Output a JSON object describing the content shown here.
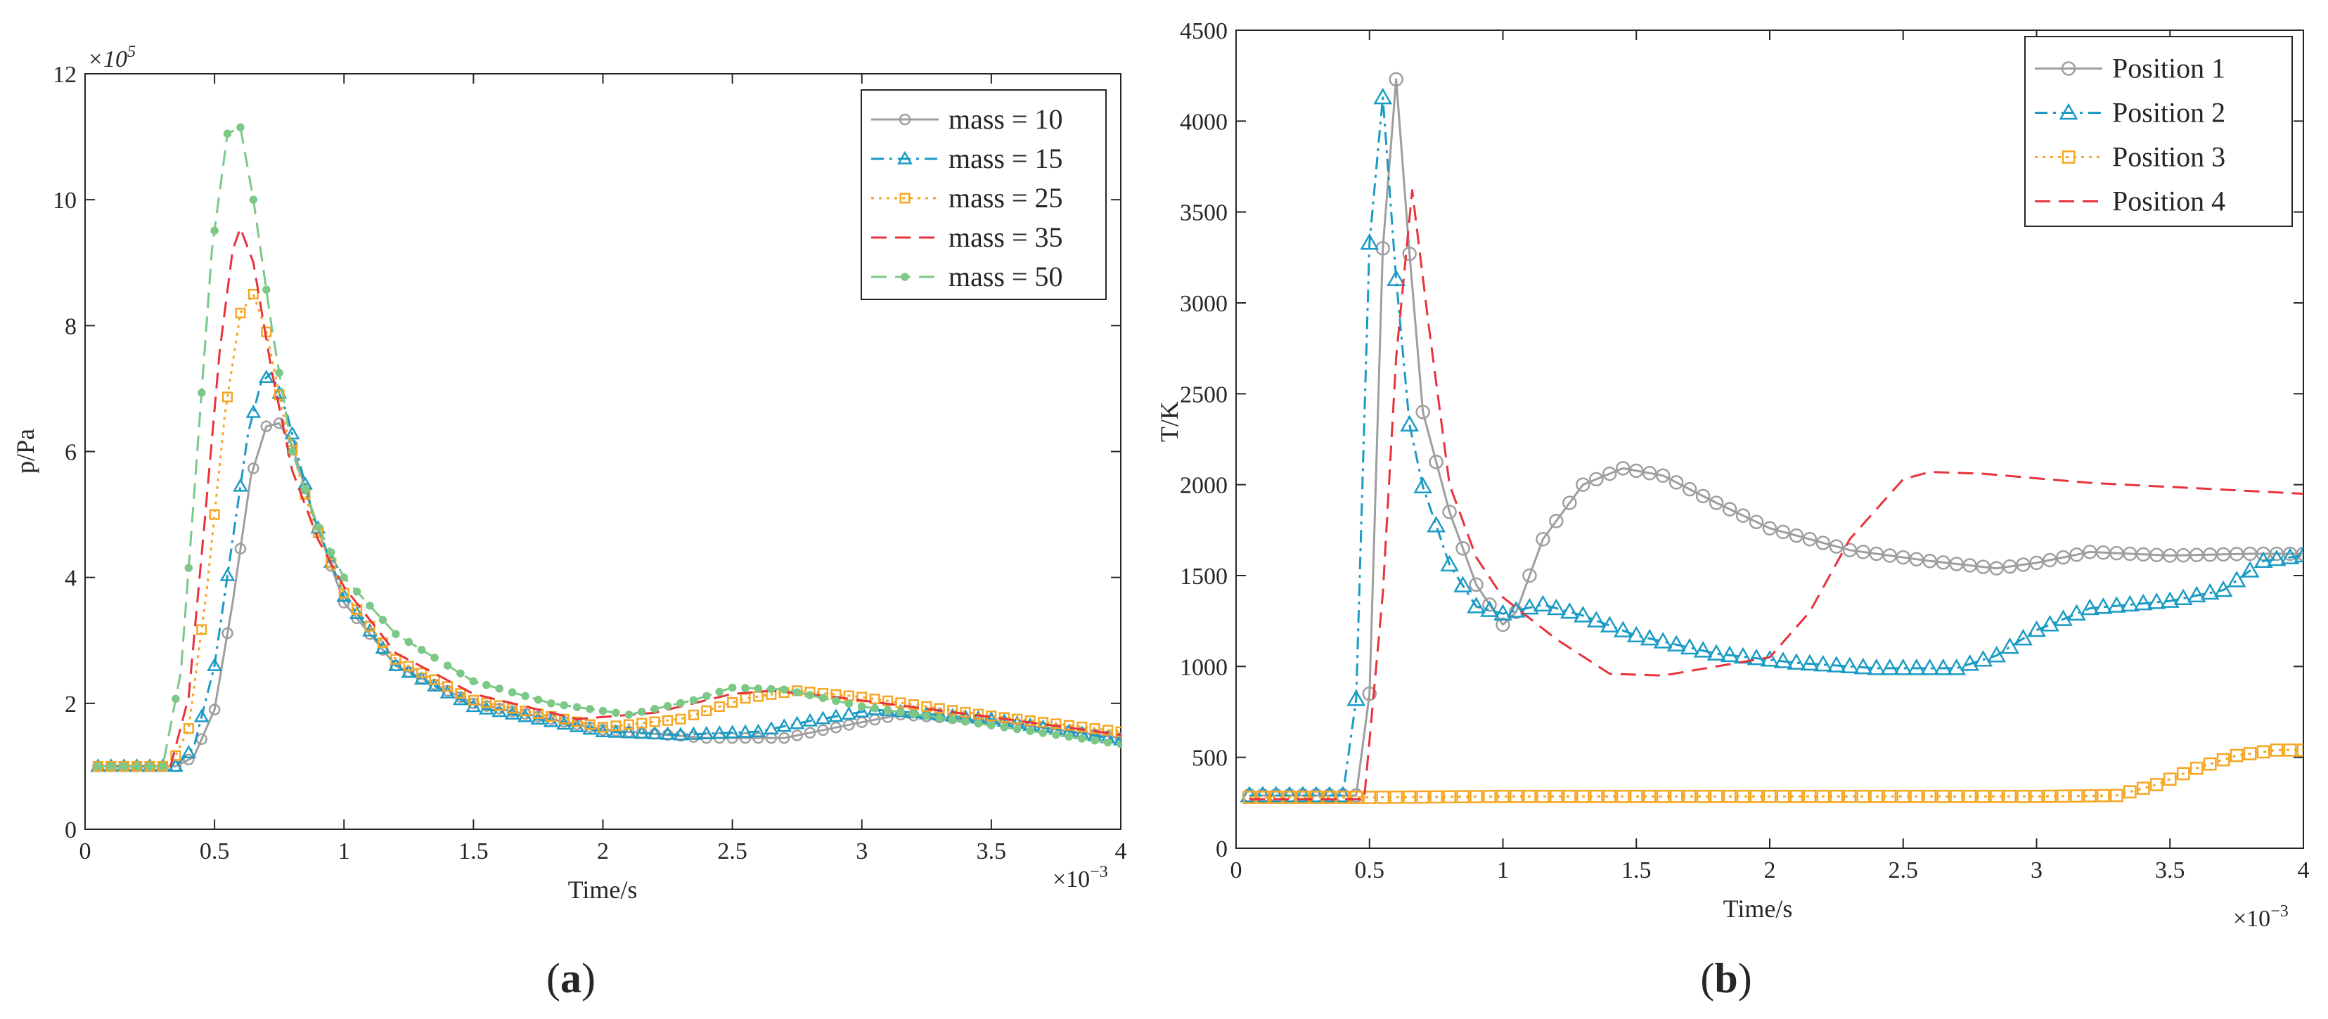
{
  "chart_data": [
    {
      "panel": "a",
      "panel_label": "a",
      "type": "line",
      "xlabel": "Time/s",
      "ylabel": "p/Pa",
      "x_exponent_label": "×10",
      "x_exponent_power": "−3",
      "y_exponent_label": "×10",
      "y_exponent_power": "5",
      "xlim": [
        0,
        4
      ],
      "ylim": [
        0,
        12
      ],
      "xticks": [
        0,
        0.5,
        1,
        1.5,
        2,
        2.5,
        3,
        3.5,
        4
      ],
      "xtick_labels": [
        "0",
        "0.5",
        "1",
        "1.5",
        "2",
        "2.5",
        "3",
        "3.5",
        "4"
      ],
      "yticks": [
        0,
        2,
        4,
        6,
        8,
        10,
        12
      ],
      "ytick_labels": [
        "0",
        "2",
        "4",
        "6",
        "8",
        "10",
        "12"
      ],
      "legend_position": "top-right",
      "series": [
        {
          "name": "mass = 10",
          "color": "#9e9e9e",
          "dash": "solid",
          "marker": "circle",
          "points": [
            [
              0.05,
              1.0
            ],
            [
              0.35,
              1.0
            ],
            [
              0.42,
              1.15
            ],
            [
              0.5,
              1.9
            ],
            [
              0.57,
              3.6
            ],
            [
              0.64,
              5.6
            ],
            [
              0.7,
              6.4
            ],
            [
              0.75,
              6.45
            ],
            [
              0.8,
              6.1
            ],
            [
              0.88,
              5.0
            ],
            [
              1.0,
              3.6
            ],
            [
              1.2,
              2.6
            ],
            [
              1.5,
              2.0
            ],
            [
              2.0,
              1.58
            ],
            [
              2.4,
              1.45
            ],
            [
              2.7,
              1.45
            ],
            [
              3.0,
              1.7
            ],
            [
              3.15,
              1.82
            ],
            [
              3.5,
              1.72
            ],
            [
              4.0,
              1.45
            ]
          ]
        },
        {
          "name": "mass = 15",
          "color": "#1a9bc4",
          "dash": "dashdot",
          "marker": "triangle",
          "points": [
            [
              0.05,
              1.0
            ],
            [
              0.35,
              1.0
            ],
            [
              0.42,
              1.3
            ],
            [
              0.5,
              2.6
            ],
            [
              0.57,
              4.6
            ],
            [
              0.63,
              6.3
            ],
            [
              0.68,
              7.1
            ],
            [
              0.72,
              7.25
            ],
            [
              0.78,
              6.6
            ],
            [
              0.88,
              5.0
            ],
            [
              1.0,
              3.7
            ],
            [
              1.2,
              2.6
            ],
            [
              1.5,
              1.95
            ],
            [
              2.0,
              1.55
            ],
            [
              2.3,
              1.5
            ],
            [
              2.6,
              1.55
            ],
            [
              2.8,
              1.72
            ],
            [
              3.05,
              1.9
            ],
            [
              3.5,
              1.75
            ],
            [
              4.0,
              1.42
            ]
          ]
        },
        {
          "name": "mass = 25",
          "color": "#f5a623",
          "dash": "dotted",
          "marker": "square",
          "points": [
            [
              0.05,
              1.0
            ],
            [
              0.33,
              1.0
            ],
            [
              0.4,
              1.6
            ],
            [
              0.47,
              3.8
            ],
            [
              0.54,
              6.6
            ],
            [
              0.6,
              8.2
            ],
            [
              0.65,
              8.5
            ],
            [
              0.7,
              7.9
            ],
            [
              0.78,
              6.3
            ],
            [
              0.88,
              4.9
            ],
            [
              1.0,
              3.75
            ],
            [
              1.2,
              2.7
            ],
            [
              1.5,
              2.05
            ],
            [
              2.0,
              1.62
            ],
            [
              2.3,
              1.75
            ],
            [
              2.55,
              2.08
            ],
            [
              2.75,
              2.2
            ],
            [
              3.0,
              2.1
            ],
            [
              3.5,
              1.8
            ],
            [
              4.0,
              1.55
            ]
          ]
        },
        {
          "name": "mass = 35",
          "color": "#e8323c",
          "dash": "dashed",
          "marker": "none",
          "points": [
            [
              0.05,
              1.0
            ],
            [
              0.33,
              1.0
            ],
            [
              0.4,
              2.1
            ],
            [
              0.46,
              4.8
            ],
            [
              0.52,
              7.6
            ],
            [
              0.57,
              9.2
            ],
            [
              0.6,
              9.55
            ],
            [
              0.65,
              9.0
            ],
            [
              0.72,
              7.3
            ],
            [
              0.8,
              5.7
            ],
            [
              0.9,
              4.6
            ],
            [
              1.0,
              3.85
            ],
            [
              1.2,
              2.8
            ],
            [
              1.5,
              2.15
            ],
            [
              1.9,
              1.75
            ],
            [
              2.2,
              1.85
            ],
            [
              2.5,
              2.15
            ],
            [
              2.65,
              2.2
            ],
            [
              2.9,
              2.1
            ],
            [
              3.5,
              1.78
            ],
            [
              4.0,
              1.5
            ]
          ]
        },
        {
          "name": "mass = 50",
          "color": "#7cc887",
          "dash": "dashed",
          "marker": "dot",
          "points": [
            [
              0.05,
              1.0
            ],
            [
              0.3,
              1.0
            ],
            [
              0.37,
              2.5
            ],
            [
              0.43,
              5.8
            ],
            [
              0.49,
              9.2
            ],
            [
              0.55,
              11.05
            ],
            [
              0.6,
              11.15
            ],
            [
              0.65,
              10.0
            ],
            [
              0.72,
              8.0
            ],
            [
              0.8,
              6.0
            ],
            [
              0.9,
              4.8
            ],
            [
              1.0,
              4.0
            ],
            [
              1.2,
              3.1
            ],
            [
              1.5,
              2.35
            ],
            [
              1.8,
              2.0
            ],
            [
              2.1,
              1.82
            ],
            [
              2.35,
              2.05
            ],
            [
              2.5,
              2.25
            ],
            [
              2.7,
              2.22
            ],
            [
              3.0,
              1.95
            ],
            [
              3.5,
              1.65
            ],
            [
              4.0,
              1.35
            ]
          ]
        }
      ]
    },
    {
      "panel": "b",
      "panel_label": "b",
      "type": "line",
      "xlabel": "Time/s",
      "ylabel": "T/K",
      "x_exponent_label": "×10",
      "x_exponent_power": "−3",
      "xlim": [
        0,
        4
      ],
      "ylim": [
        0,
        4500
      ],
      "xticks": [
        0,
        0.5,
        1,
        1.5,
        2,
        2.5,
        3,
        3.5,
        4
      ],
      "xtick_labels": [
        "0",
        "0.5",
        "1",
        "1.5",
        "2",
        "2.5",
        "3",
        "3.5",
        "4"
      ],
      "yticks": [
        0,
        500,
        1000,
        1500,
        2000,
        2500,
        3000,
        3500,
        4000,
        4500
      ],
      "ytick_labels": [
        "0",
        "500",
        "1000",
        "1500",
        "2000",
        "2500",
        "3000",
        "3500",
        "4000",
        "4500"
      ],
      "legend_position": "top-right",
      "series": [
        {
          "name": "Position 1",
          "color": "#9e9e9e",
          "dash": "solid",
          "marker": "circle",
          "points": [
            [
              0.05,
              290
            ],
            [
              0.45,
              290
            ],
            [
              0.5,
              850
            ],
            [
              0.55,
              3300
            ],
            [
              0.6,
              4230
            ],
            [
              0.65,
              3270
            ],
            [
              0.7,
              2400
            ],
            [
              0.8,
              1850
            ],
            [
              0.9,
              1450
            ],
            [
              1.0,
              1230
            ],
            [
              1.05,
              1300
            ],
            [
              1.15,
              1700
            ],
            [
              1.3,
              2000
            ],
            [
              1.45,
              2090
            ],
            [
              1.6,
              2050
            ],
            [
              1.8,
              1900
            ],
            [
              2.0,
              1760
            ],
            [
              2.3,
              1640
            ],
            [
              2.6,
              1580
            ],
            [
              2.85,
              1540
            ],
            [
              3.0,
              1570
            ],
            [
              3.2,
              1630
            ],
            [
              3.5,
              1610
            ],
            [
              3.8,
              1620
            ],
            [
              4.0,
              1620
            ]
          ]
        },
        {
          "name": "Position 2",
          "color": "#1a9bc4",
          "dash": "dashdot",
          "marker": "triangle",
          "points": [
            [
              0.05,
              290
            ],
            [
              0.4,
              290
            ],
            [
              0.45,
              820
            ],
            [
              0.5,
              3330
            ],
            [
              0.55,
              4130
            ],
            [
              0.6,
              3130
            ],
            [
              0.65,
              2330
            ],
            [
              0.7,
              1990
            ],
            [
              0.8,
              1560
            ],
            [
              0.9,
              1330
            ],
            [
              1.0,
              1290
            ],
            [
              1.15,
              1340
            ],
            [
              1.3,
              1280
            ],
            [
              1.5,
              1170
            ],
            [
              1.8,
              1070
            ],
            [
              2.1,
              1020
            ],
            [
              2.4,
              990
            ],
            [
              2.7,
              990
            ],
            [
              2.85,
              1060
            ],
            [
              3.0,
              1200
            ],
            [
              3.2,
              1320
            ],
            [
              3.5,
              1360
            ],
            [
              3.7,
              1420
            ],
            [
              3.85,
              1580
            ],
            [
              4.0,
              1610
            ]
          ]
        },
        {
          "name": "Position 3",
          "color": "#f5a623",
          "dash": "dotted",
          "marker": "square",
          "points": [
            [
              0.05,
              280
            ],
            [
              0.5,
              280
            ],
            [
              1.0,
              285
            ],
            [
              2.0,
              285
            ],
            [
              3.0,
              285
            ],
            [
              3.3,
              290
            ],
            [
              3.45,
              350
            ],
            [
              3.6,
              440
            ],
            [
              3.75,
              510
            ],
            [
              3.9,
              540
            ],
            [
              4.0,
              540
            ]
          ]
        },
        {
          "name": "Position 4",
          "color": "#e8323c",
          "dash": "dashed",
          "marker": "none",
          "points": [
            [
              0.05,
              270
            ],
            [
              0.48,
              270
            ],
            [
              0.55,
              1400
            ],
            [
              0.6,
              2700
            ],
            [
              0.66,
              3620
            ],
            [
              0.72,
              2900
            ],
            [
              0.8,
              2000
            ],
            [
              0.9,
              1600
            ],
            [
              1.0,
              1380
            ],
            [
              1.2,
              1150
            ],
            [
              1.4,
              960
            ],
            [
              1.6,
              950
            ],
            [
              1.8,
              1000
            ],
            [
              2.0,
              1050
            ],
            [
              2.15,
              1300
            ],
            [
              2.3,
              1700
            ],
            [
              2.5,
              2030
            ],
            [
              2.6,
              2070
            ],
            [
              2.8,
              2060
            ],
            [
              3.2,
              2010
            ],
            [
              3.6,
              1980
            ],
            [
              4.0,
              1950
            ]
          ]
        }
      ]
    }
  ]
}
